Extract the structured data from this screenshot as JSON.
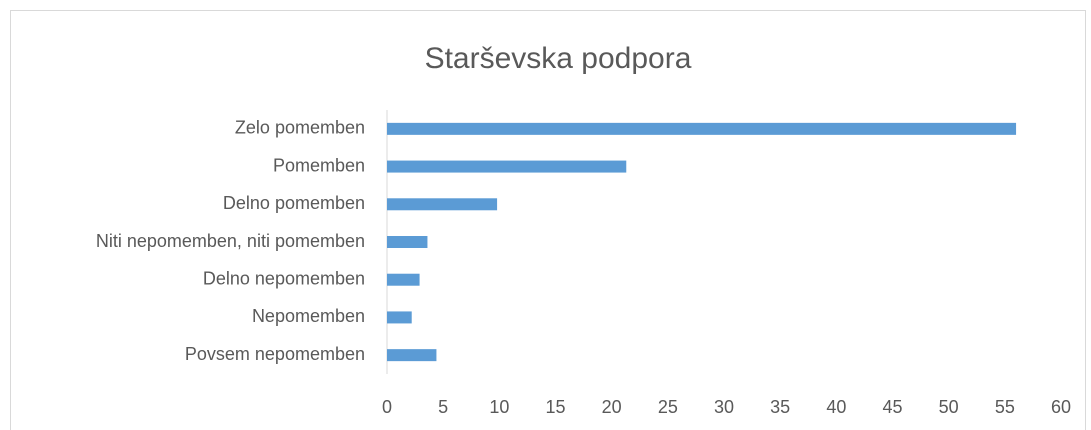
{
  "chart_data": {
    "type": "hbar",
    "title": "Starševska podpora",
    "categories": [
      "Zelo pomemben",
      "Pomemben",
      "Delno pomemben",
      "Niti nepomemben, niti pomemben",
      "Delno nepomemben",
      "Nepomemben",
      "Povsem nepomemben"
    ],
    "values": [
      56,
      21.3,
      9.8,
      3.6,
      2.9,
      2.2,
      4.4
    ],
    "color": "#5b9bd5",
    "xlim": [
      0,
      60
    ],
    "xticks": [
      0,
      5,
      10,
      15,
      20,
      25,
      30,
      35,
      40,
      45,
      50,
      55,
      60
    ],
    "grid": false
  }
}
